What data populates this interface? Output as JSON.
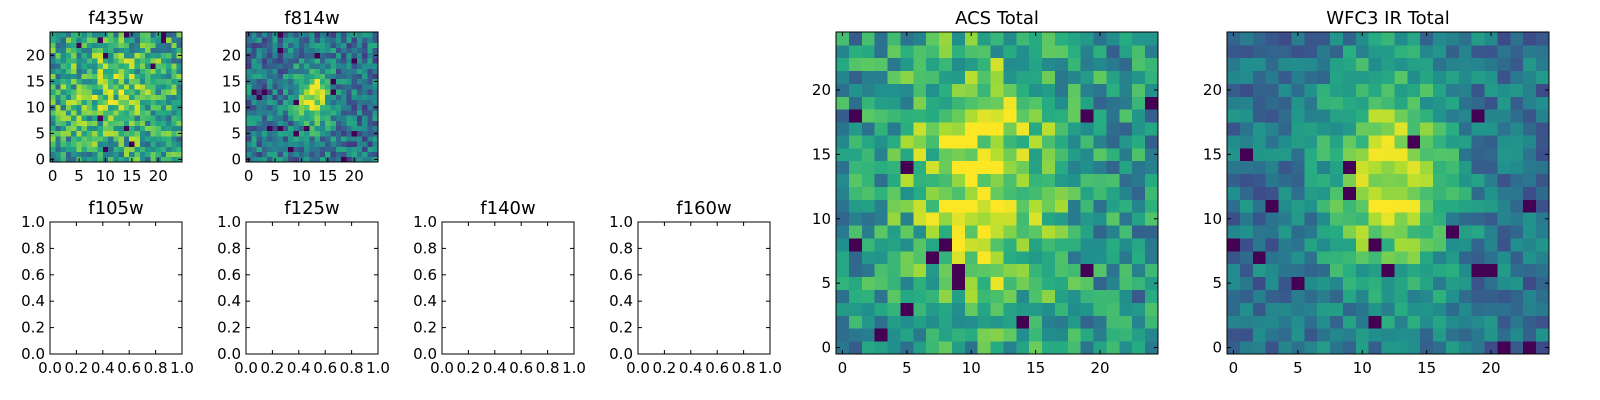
{
  "chart_data": [
    {
      "type": "heatmap",
      "title": "f435w",
      "grid": false,
      "xlim": [
        -0.5,
        24.5
      ],
      "ylim": [
        -0.5,
        24.5
      ],
      "xticks": [
        0,
        5,
        10,
        15,
        20
      ],
      "yticks": [
        0,
        5,
        10,
        15,
        20
      ],
      "xtick_labels": [
        "0",
        "5",
        "10",
        "15",
        "20"
      ],
      "ytick_labels": [
        "0",
        "5",
        "10",
        "15",
        "20"
      ],
      "grid_size": 25,
      "colormap": "viridis",
      "pattern": "mostly uniform noise, slightly brighter band near center",
      "seed": 11,
      "values": []
    },
    {
      "type": "heatmap",
      "title": "f814w",
      "grid": false,
      "xlim": [
        -0.5,
        24.5
      ],
      "ylim": [
        -0.5,
        24.5
      ],
      "xticks": [
        0,
        5,
        10,
        15,
        20
      ],
      "yticks": [
        0,
        5,
        10,
        15,
        20
      ],
      "xtick_labels": [
        "0",
        "5",
        "10",
        "15",
        "20"
      ],
      "ytick_labels": [
        "0",
        "5",
        "10",
        "15",
        "20"
      ],
      "grid_size": 25,
      "colormap": "viridis",
      "pattern": "noise with bright elongated source near x=12, y=12",
      "seed": 29,
      "values": []
    },
    {
      "type": "empty",
      "title": "f105w",
      "grid": false,
      "xlim": [
        0,
        1
      ],
      "ylim": [
        0,
        1
      ],
      "xticks": [
        0,
        0.2,
        0.4,
        0.6,
        0.8,
        1.0
      ],
      "yticks": [
        0,
        0.2,
        0.4,
        0.6,
        0.8,
        1.0
      ],
      "xtick_labels": [
        "0.0",
        "0.2",
        "0.4",
        "0.6",
        "0.8",
        "1.0"
      ],
      "ytick_labels": [
        "0.0",
        "0.2",
        "0.4",
        "0.6",
        "0.8",
        "1.0"
      ]
    },
    {
      "type": "empty",
      "title": "f125w",
      "grid": false,
      "xlim": [
        0,
        1
      ],
      "ylim": [
        0,
        1
      ],
      "xticks": [
        0,
        0.2,
        0.4,
        0.6,
        0.8,
        1.0
      ],
      "yticks": [
        0,
        0.2,
        0.4,
        0.6,
        0.8,
        1.0
      ],
      "xtick_labels": [
        "0.0",
        "0.2",
        "0.4",
        "0.6",
        "0.8",
        "1.0"
      ],
      "ytick_labels": [
        "0.0",
        "0.2",
        "0.4",
        "0.6",
        "0.8",
        "1.0"
      ]
    },
    {
      "type": "empty",
      "title": "f140w",
      "grid": false,
      "xlim": [
        0,
        1
      ],
      "ylim": [
        0,
        1
      ],
      "xticks": [
        0,
        0.2,
        0.4,
        0.6,
        0.8,
        1.0
      ],
      "yticks": [
        0,
        0.2,
        0.4,
        0.6,
        0.8,
        1.0
      ],
      "xtick_labels": [
        "0.0",
        "0.2",
        "0.4",
        "0.6",
        "0.8",
        "1.0"
      ],
      "ytick_labels": [
        "0.0",
        "0.2",
        "0.4",
        "0.6",
        "0.8",
        "1.0"
      ]
    },
    {
      "type": "empty",
      "title": "f160w",
      "grid": false,
      "xlim": [
        0,
        1
      ],
      "ylim": [
        0,
        1
      ],
      "xticks": [
        0,
        0.2,
        0.4,
        0.6,
        0.8,
        1.0
      ],
      "yticks": [
        0,
        0.2,
        0.4,
        0.6,
        0.8,
        1.0
      ],
      "xtick_labels": [
        "0.0",
        "0.2",
        "0.4",
        "0.6",
        "0.8",
        "1.0"
      ],
      "ytick_labels": [
        "0.0",
        "0.2",
        "0.4",
        "0.6",
        "0.8",
        "1.0"
      ]
    },
    {
      "type": "heatmap",
      "title": "ACS Total",
      "grid": false,
      "xlim": [
        -0.5,
        24.5
      ],
      "ylim": [
        -0.5,
        24.5
      ],
      "xticks": [
        0,
        5,
        10,
        15,
        20
      ],
      "yticks": [
        0,
        5,
        10,
        15,
        20
      ],
      "xtick_labels": [
        "0",
        "5",
        "10",
        "15",
        "20"
      ],
      "ytick_labels": [
        "0",
        "5",
        "10",
        "15",
        "20"
      ],
      "grid_size": 25,
      "colormap": "viridis",
      "pattern": "noise with broad bright source around x=11, y=13",
      "seed": 47,
      "values": []
    },
    {
      "type": "heatmap",
      "title": "WFC3 IR Total",
      "grid": false,
      "xlim": [
        -0.5,
        24.5
      ],
      "ylim": [
        -0.5,
        24.5
      ],
      "xticks": [
        0,
        5,
        10,
        15,
        20
      ],
      "yticks": [
        0,
        5,
        10,
        15,
        20
      ],
      "xtick_labels": [
        "0",
        "5",
        "10",
        "15",
        "20"
      ],
      "ytick_labels": [
        "0",
        "5",
        "10",
        "15",
        "20"
      ],
      "grid_size": 25,
      "colormap": "viridis",
      "pattern": "noise with elongated bright source around x=12, y=13",
      "seed": 83,
      "values": []
    }
  ]
}
